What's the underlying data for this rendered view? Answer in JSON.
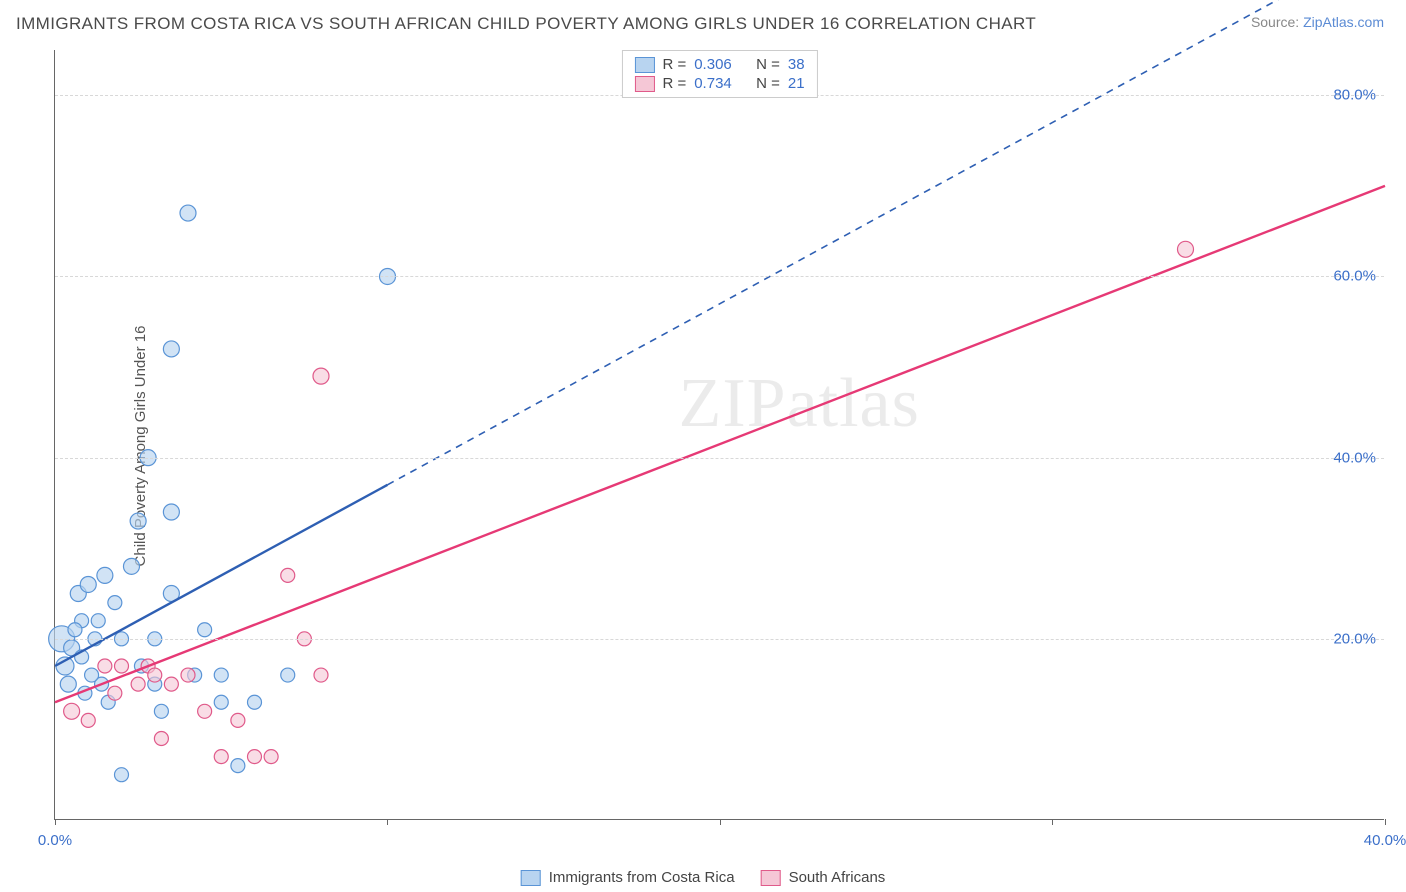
{
  "title": "IMMIGRANTS FROM COSTA RICA VS SOUTH AFRICAN CHILD POVERTY AMONG GIRLS UNDER 16 CORRELATION CHART",
  "source_prefix": "Source: ",
  "source_link": "ZipAtlas.com",
  "ylabel": "Child Poverty Among Girls Under 16",
  "watermark": "ZIPatlas",
  "chart": {
    "type": "scatter",
    "xlim": [
      0,
      40
    ],
    "ylim": [
      0,
      85
    ],
    "background_color": "#ffffff",
    "grid_color": "#d8d8d8",
    "axis_color": "#666666",
    "tick_label_color": "#3b6fc9",
    "xticks": [
      0,
      10,
      20,
      30,
      40
    ],
    "xtick_labels": [
      "0.0%",
      "",
      "",
      "",
      "40.0%"
    ],
    "yticks": [
      20,
      40,
      60,
      80
    ],
    "ytick_labels": [
      "20.0%",
      "40.0%",
      "60.0%",
      "80.0%"
    ],
    "series": [
      {
        "name": "Immigrants from Costa Rica",
        "fill": "#b8d4f0",
        "stroke": "#5a94d6",
        "line_color": "#2e5fb3",
        "marker_shape": "circle",
        "marker_opacity": 0.65,
        "R": "0.306",
        "N": "38",
        "trend": {
          "x1": 0,
          "y1": 17,
          "x2": 10,
          "y2": 37,
          "solid_until_x": 10,
          "dashed_to_x": 40,
          "dashed_to_y": 97
        },
        "points": [
          {
            "x": 0.2,
            "y": 20,
            "r": 13
          },
          {
            "x": 0.3,
            "y": 17,
            "r": 9
          },
          {
            "x": 0.5,
            "y": 19,
            "r": 8
          },
          {
            "x": 0.4,
            "y": 15,
            "r": 8
          },
          {
            "x": 0.7,
            "y": 25,
            "r": 8
          },
          {
            "x": 0.8,
            "y": 22,
            "r": 7
          },
          {
            "x": 1.0,
            "y": 26,
            "r": 8
          },
          {
            "x": 1.2,
            "y": 20,
            "r": 7
          },
          {
            "x": 1.5,
            "y": 27,
            "r": 8
          },
          {
            "x": 1.4,
            "y": 15,
            "r": 7
          },
          {
            "x": 1.6,
            "y": 13,
            "r": 7
          },
          {
            "x": 1.8,
            "y": 24,
            "r": 7
          },
          {
            "x": 2.0,
            "y": 20,
            "r": 7
          },
          {
            "x": 2.3,
            "y": 28,
            "r": 8
          },
          {
            "x": 2.5,
            "y": 33,
            "r": 8
          },
          {
            "x": 2.8,
            "y": 40,
            "r": 8
          },
          {
            "x": 3.0,
            "y": 15,
            "r": 7
          },
          {
            "x": 3.2,
            "y": 12,
            "r": 7
          },
          {
            "x": 3.5,
            "y": 52,
            "r": 8
          },
          {
            "x": 3.5,
            "y": 25,
            "r": 8
          },
          {
            "x": 3.5,
            "y": 34,
            "r": 8
          },
          {
            "x": 4.0,
            "y": 67,
            "r": 8
          },
          {
            "x": 4.2,
            "y": 16,
            "r": 7
          },
          {
            "x": 4.5,
            "y": 21,
            "r": 7
          },
          {
            "x": 5.0,
            "y": 13,
            "r": 7
          },
          {
            "x": 5.0,
            "y": 16,
            "r": 7
          },
          {
            "x": 5.5,
            "y": 6,
            "r": 7
          },
          {
            "x": 6.0,
            "y": 13,
            "r": 7
          },
          {
            "x": 7.0,
            "y": 16,
            "r": 7
          },
          {
            "x": 10.0,
            "y": 60,
            "r": 8
          },
          {
            "x": 2.0,
            "y": 5,
            "r": 7
          },
          {
            "x": 0.8,
            "y": 18,
            "r": 7
          },
          {
            "x": 1.1,
            "y": 16,
            "r": 7
          },
          {
            "x": 1.3,
            "y": 22,
            "r": 7
          },
          {
            "x": 0.9,
            "y": 14,
            "r": 7
          },
          {
            "x": 3.0,
            "y": 20,
            "r": 7
          },
          {
            "x": 2.6,
            "y": 17,
            "r": 7
          },
          {
            "x": 0.6,
            "y": 21,
            "r": 7
          }
        ]
      },
      {
        "name": "South Africans",
        "fill": "#f5c7d6",
        "stroke": "#e05a8a",
        "line_color": "#e63975",
        "marker_shape": "circle",
        "marker_opacity": 0.6,
        "R": "0.734",
        "N": "21",
        "trend": {
          "x1": 0,
          "y1": 13,
          "x2": 40,
          "y2": 70,
          "solid_until_x": 40
        },
        "points": [
          {
            "x": 0.5,
            "y": 12,
            "r": 8
          },
          {
            "x": 1.0,
            "y": 11,
            "r": 7
          },
          {
            "x": 1.5,
            "y": 17,
            "r": 7
          },
          {
            "x": 1.8,
            "y": 14,
            "r": 7
          },
          {
            "x": 2.0,
            "y": 17,
            "r": 7
          },
          {
            "x": 2.5,
            "y": 15,
            "r": 7
          },
          {
            "x": 2.8,
            "y": 17,
            "r": 7
          },
          {
            "x": 3.0,
            "y": 16,
            "r": 7
          },
          {
            "x": 3.2,
            "y": 9,
            "r": 7
          },
          {
            "x": 3.5,
            "y": 15,
            "r": 7
          },
          {
            "x": 4.0,
            "y": 16,
            "r": 7
          },
          {
            "x": 4.5,
            "y": 12,
            "r": 7
          },
          {
            "x": 5.0,
            "y": 7,
            "r": 7
          },
          {
            "x": 5.5,
            "y": 11,
            "r": 7
          },
          {
            "x": 6.0,
            "y": 7,
            "r": 7
          },
          {
            "x": 6.5,
            "y": 7,
            "r": 7
          },
          {
            "x": 7.0,
            "y": 27,
            "r": 7
          },
          {
            "x": 7.5,
            "y": 20,
            "r": 7
          },
          {
            "x": 8.0,
            "y": 49,
            "r": 8
          },
          {
            "x": 8.0,
            "y": 16,
            "r": 7
          },
          {
            "x": 34.0,
            "y": 63,
            "r": 8
          }
        ]
      }
    ]
  },
  "legend_labels": {
    "r_prefix": "R =",
    "n_prefix": "N ="
  }
}
